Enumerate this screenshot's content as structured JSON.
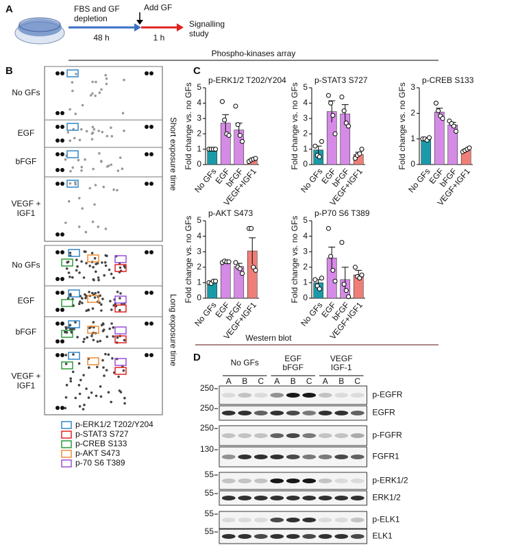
{
  "panel_a": {
    "label": "A",
    "step1": "FBS and GF",
    "step1b": "depletion",
    "time1": "48 h",
    "step2": "Add GF",
    "time2": "1 h",
    "step3": "Signalling",
    "step3b": "study"
  },
  "array_header": "Phospho-kinases array",
  "panel_b": {
    "label": "B",
    "short": {
      "title": "Short exposure time",
      "rows": [
        [
          "No GFs"
        ],
        [
          "EGF"
        ],
        [
          "bFGF"
        ],
        [
          "VEGF +",
          "IGF1"
        ]
      ]
    },
    "long": {
      "title": "Long exposure time",
      "rows": [
        [
          "No GFs"
        ],
        [
          "EGF"
        ],
        [
          "bFGF"
        ],
        [
          "VEGF +",
          "IGF1"
        ]
      ]
    },
    "legend": [
      {
        "label": "p-ERK1/2 T202/Y204",
        "color": "#2f86c8"
      },
      {
        "label": "p-STAT3 S727",
        "color": "#e0201f"
      },
      {
        "label": "p-CREB S133",
        "color": "#2a9a3a"
      },
      {
        "label": "p-AKT S473",
        "color": "#f08a30"
      },
      {
        "label": "p-70 S6 T389",
        "color": "#9a4fd8"
      }
    ]
  },
  "panel_c_label": "C",
  "chart_data": [
    {
      "type": "bar",
      "title": "p-ERK1/2 T202/Y204",
      "y_label": "Fold change vs. no GFs",
      "categories": [
        "No GFs",
        "EGF",
        "bFGF",
        "VEGF+IGF1"
      ],
      "values": [
        1,
        2.7,
        2.25,
        0.3
      ],
      "errors": [
        0.03,
        0.55,
        0.45,
        0.07
      ],
      "points": [
        [
          1,
          1,
          1,
          1
        ],
        [
          4.1,
          2.9,
          2.0,
          1.9
        ],
        [
          3.8,
          2.6,
          1.9,
          1.5
        ],
        [
          0.2,
          0.3,
          0.35,
          0.4
        ]
      ],
      "colors": [
        "#1a9aa8",
        "#d58be6",
        "#d58be6",
        "#f07e78"
      ],
      "ylim": [
        0,
        5
      ],
      "yticks": [
        0,
        1,
        2,
        3,
        4,
        5
      ]
    },
    {
      "type": "bar",
      "title": "p-STAT3 S727",
      "y_label": "Fold change vs. no GFs",
      "categories": [
        "No GFs",
        "EGF",
        "bFGF",
        "VEGF+IGF1"
      ],
      "values": [
        0.95,
        3.45,
        3.3,
        0.65
      ],
      "errors": [
        0.25,
        0.7,
        0.6,
        0.15
      ],
      "points": [
        [
          1.2,
          0.6,
          0.5,
          1.5
        ],
        [
          4.5,
          4.0,
          3.2,
          2.0
        ],
        [
          4.4,
          3.5,
          2.7,
          2.5
        ],
        [
          0.4,
          0.6,
          0.7,
          1.0
        ]
      ],
      "colors": [
        "#1a9aa8",
        "#d58be6",
        "#d58be6",
        "#f07e78"
      ],
      "ylim": [
        0,
        5
      ],
      "yticks": [
        0,
        1,
        2,
        3,
        4,
        5
      ]
    },
    {
      "type": "bar",
      "title": "p-CREB S133",
      "y_label": "Fold change vs. no GFs",
      "categories": [
        "No GFs",
        "EGF",
        "bFGF",
        "VEGF+IGF1"
      ],
      "values": [
        1,
        2.05,
        1.55,
        0.55
      ],
      "errors": [
        0.05,
        0.15,
        0.1,
        0.05
      ],
      "points": [
        [
          1,
          1,
          0.95,
          1.05
        ],
        [
          2.4,
          2.1,
          1.9,
          1.8
        ],
        [
          1.7,
          1.6,
          1.5,
          1.3
        ],
        [
          0.5,
          0.55,
          0.6,
          0.65
        ]
      ],
      "colors": [
        "#1a9aa8",
        "#d58be6",
        "#d58be6",
        "#f07e78"
      ],
      "ylim": [
        0,
        3
      ],
      "yticks": [
        0,
        1,
        2,
        3
      ]
    },
    {
      "type": "bar",
      "title": "p-AKT S473",
      "y_label": "Fold change vs. no GFs",
      "categories": [
        "No GFs",
        "EGF",
        "bFGF",
        "VEGF+IGF1"
      ],
      "values": [
        1,
        2.35,
        2.05,
        3.05
      ],
      "errors": [
        0.1,
        0.05,
        0.2,
        0.85
      ],
      "points": [
        [
          1,
          0.95,
          1.1,
          1.1
        ],
        [
          2.3,
          2.4,
          2.35,
          2.35
        ],
        [
          2.3,
          2.0,
          1.9,
          1.6
        ],
        [
          4.5,
          4.5,
          2.0,
          1.8
        ]
      ],
      "colors": [
        "#1a9aa8",
        "#d58be6",
        "#d58be6",
        "#f07e78"
      ],
      "ylim": [
        0,
        5
      ],
      "yticks": [
        0,
        1,
        2,
        3,
        4,
        5
      ]
    },
    {
      "type": "bar",
      "title": "p-P70 S6 T389",
      "y_label": "Fold change vs. no GFs",
      "categories": [
        "No GFs",
        "EGF",
        "bFGF",
        "VEGF+IGF1"
      ],
      "values": [
        1,
        2.6,
        1.2,
        1.5
      ],
      "errors": [
        0.2,
        0.7,
        0.8,
        0.3
      ],
      "points": [
        [
          1.2,
          0.8,
          0.6,
          1.3
        ],
        [
          4.5,
          2.7,
          1.8,
          1.1
        ],
        [
          3.6,
          0.9,
          0.5,
          0.1
        ],
        [
          2.0,
          1.4,
          1.3,
          1.5
        ]
      ],
      "colors": [
        "#1a9aa8",
        "#d58be6",
        "#d58be6",
        "#f07e78"
      ],
      "ylim": [
        0,
        5
      ],
      "yticks": [
        0,
        1,
        2,
        3,
        4,
        5
      ]
    }
  ],
  "panel_d": {
    "label": "D",
    "title": "Western blot",
    "groups": [
      [
        "No GFs"
      ],
      [
        "EGF",
        "bFGF"
      ],
      [
        "VEGF",
        "IGF-1"
      ]
    ],
    "lanes": [
      "A",
      "B",
      "C"
    ],
    "blots": [
      {
        "name": "p-EGFR",
        "marker": "250"
      },
      {
        "name": "EGFR",
        "marker": "250"
      },
      {
        "name": "p-FGFR",
        "marker": "250"
      },
      {
        "name": "FGFR1",
        "marker": "130"
      },
      {
        "name": "p-ERK1/2",
        "marker": "55"
      },
      {
        "name": "ERK1/2",
        "marker": "55"
      },
      {
        "name": "p-ELK1",
        "marker": "55"
      },
      {
        "name": "ELK1",
        "marker": "55"
      }
    ]
  }
}
